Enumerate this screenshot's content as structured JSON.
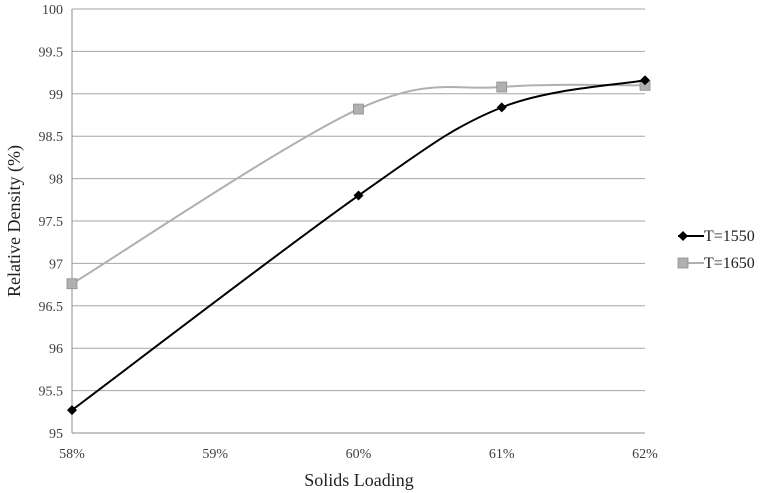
{
  "chart_data": {
    "type": "line",
    "title": "",
    "xlabel": "Solids Loading",
    "ylabel": "Relative Density (%)",
    "categories": [
      "58%",
      "59%",
      "60%",
      "61%",
      "62%"
    ],
    "x": [
      58,
      59,
      60,
      61,
      62
    ],
    "ylim": [
      95,
      100
    ],
    "yticks": [
      "95",
      "95.5",
      "96",
      "96.5",
      "97",
      "97.5",
      "98",
      "98.5",
      "99",
      "99.5",
      "100"
    ],
    "grid": true,
    "legend_position": "right",
    "series": [
      {
        "name": "T=1550",
        "color": "#000000",
        "marker": "diamond",
        "x": [
          58,
          60,
          61,
          62
        ],
        "values": [
          95.27,
          97.8,
          98.84,
          99.16
        ]
      },
      {
        "name": "T=1650",
        "color": "#b0b0b0",
        "marker": "square",
        "x": [
          58,
          60,
          61,
          62
        ],
        "values": [
          96.76,
          98.82,
          99.08,
          99.1
        ]
      }
    ]
  }
}
